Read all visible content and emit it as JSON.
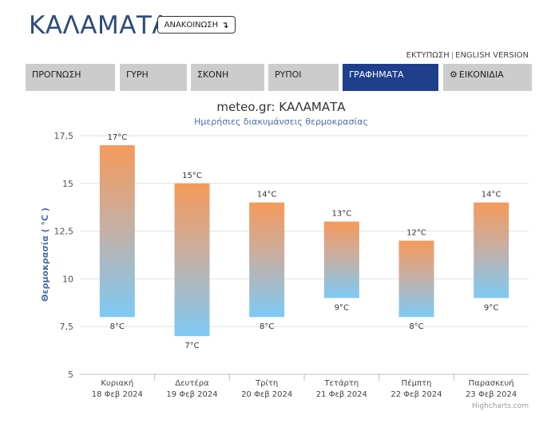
{
  "header": {
    "city": "ΚΑΛΑΜΑΤΑ",
    "announce_label": "ΑΝΑΚΟΙΝΩΣΗ",
    "announce_icon": "arrow-down-right-icon",
    "links": {
      "print": "ΕΚΤΥΠΩΣΗ",
      "separator": "|",
      "english": "ENGLISH VERSION"
    }
  },
  "tabs": [
    {
      "label": "ΠΡΟΓΝΩΣΗ"
    },
    {
      "label": "ΓΥΡΗ"
    },
    {
      "label": "ΣΚΟΝΗ"
    },
    {
      "label": "ΡΥΠΟΙ"
    },
    {
      "label": "ΓΡΑΦΗΜΑΤΑ",
      "active": true
    },
    {
      "label": "ΕΙΚΟΝΙΔΙΑ",
      "icon": "gear-icon"
    }
  ],
  "colors": {
    "accent": "#1f3f8c",
    "bar_top": "#f59a5a",
    "bar_bottom": "#7dcaf5",
    "title": "#2e4a7d"
  },
  "chart_data": {
    "type": "bar",
    "title": "meteo.gr: ΚΑΛΑΜΑΤΑ",
    "subtitle": "Ημερήσιες διακυμάνσεις θερμοκρασίας",
    "ylabel": "Θερμοκρασία ( °C )",
    "ylim": [
      5,
      17.5
    ],
    "yticks": [
      "5",
      "7,5",
      "10",
      "12,5",
      "15",
      "17,5"
    ],
    "ytick_values": [
      5,
      7.5,
      10,
      12.5,
      15,
      17.5
    ],
    "grid": true,
    "categories": [
      {
        "day": "Κυριακή",
        "date": "18 Φεβ 2024"
      },
      {
        "day": "Δευτέρα",
        "date": "19 Φεβ 2024"
      },
      {
        "day": "Τρίτη",
        "date": "20 Φεβ 2024"
      },
      {
        "day": "Τετάρτη",
        "date": "21 Φεβ 2024"
      },
      {
        "day": "Πέμπτη",
        "date": "22 Φεβ 2024"
      },
      {
        "day": "Παρασκευή",
        "date": "23 Φεβ 2024"
      }
    ],
    "series": [
      {
        "low": [
          8,
          7,
          8,
          9,
          8,
          9
        ],
        "high": [
          17,
          15,
          14,
          13,
          12,
          14
        ]
      }
    ],
    "high_labels": [
      "17°C",
      "15°C",
      "14°C",
      "13°C",
      "12°C",
      "14°C"
    ],
    "low_labels": [
      "8°C",
      "7°C",
      "8°C",
      "9°C",
      "8°C",
      "9°C"
    ],
    "credits": "Highcharts.com"
  }
}
